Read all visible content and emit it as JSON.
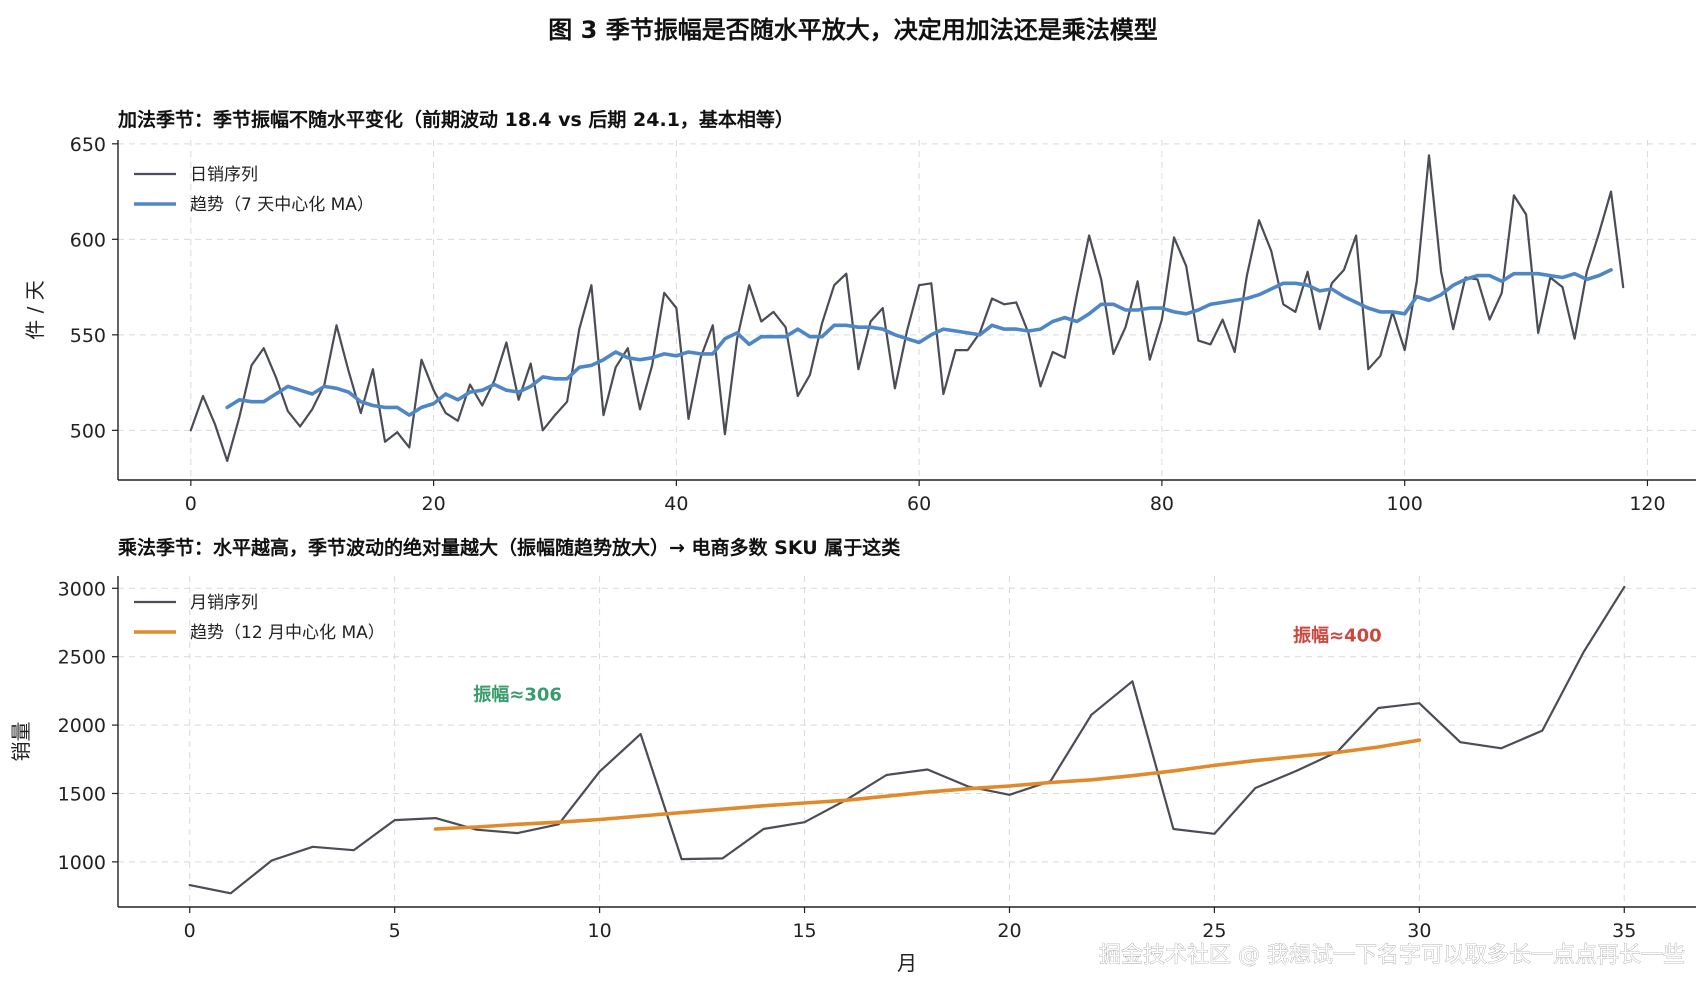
{
  "suptitle": "图 3  季节振幅是否随水平放大，决定用加法还是乘法模型",
  "watermark": "掘金技术社区 @ 我想试一下名字可以取多长一点点再长一些",
  "colors": {
    "daily": "#4a4d55",
    "trend_add": "#4f86c6",
    "trend_mul": "#e08a2c",
    "annot_green": "#3a9b6b",
    "annot_red": "#c9483f"
  },
  "chart_data": [
    {
      "type": "line",
      "title": "加法季节：季节振幅不随水平变化（前期波动 18.4 vs 后期 24.1，基本相等）",
      "xlabel": "",
      "ylabel": "件 / 天",
      "xlim": [
        -6,
        124
      ],
      "ylim": [
        474,
        652
      ],
      "xticks": [
        0,
        20,
        40,
        60,
        80,
        100,
        120
      ],
      "yticks": [
        500,
        550,
        600,
        650
      ],
      "grid": true,
      "legend_position": "top-left",
      "series": [
        {
          "name": "日销序列",
          "x_start": 0,
          "values": [
            500,
            518,
            503,
            484,
            507,
            534,
            543,
            528,
            510,
            502,
            511,
            524,
            555,
            531,
            509,
            532,
            494,
            499,
            491,
            537,
            521,
            509,
            505,
            524,
            513,
            526,
            546,
            516,
            535,
            500,
            508,
            515,
            553,
            576,
            508,
            533,
            543,
            511,
            534,
            572,
            564,
            506,
            538,
            555,
            498,
            548,
            576,
            557,
            562,
            554,
            518,
            529,
            556,
            576,
            582,
            532,
            557,
            564,
            522,
            552,
            576,
            577,
            519,
            542,
            542,
            551,
            569,
            566,
            567,
            551,
            523,
            541,
            538,
            571,
            602,
            579,
            540,
            554,
            578,
            537,
            558,
            601,
            586,
            547,
            545,
            558,
            541,
            581,
            610,
            594,
            566,
            562,
            583,
            553,
            577,
            584,
            602,
            532,
            539,
            562,
            542,
            578,
            644,
            583,
            553,
            580,
            579,
            558,
            572,
            623,
            613,
            551,
            580,
            575,
            548,
            583,
            603,
            625,
            575
          ],
          "color": "#4a4d55"
        },
        {
          "name": "趋势（7 天中心化 MA）",
          "x_start": 3,
          "values": [
            512,
            516,
            515,
            515,
            519,
            523,
            521,
            519,
            523,
            522,
            520,
            515,
            513,
            512,
            512,
            508,
            512,
            514,
            519,
            516,
            520,
            521,
            524,
            521,
            520,
            523,
            528,
            527,
            527,
            533,
            534,
            537,
            541,
            538,
            537,
            538,
            540,
            539,
            541,
            540,
            540,
            548,
            551,
            545,
            549,
            549,
            549,
            553,
            549,
            549,
            555,
            555,
            554,
            554,
            553,
            550,
            548,
            546,
            550,
            553,
            552,
            551,
            550,
            555,
            553,
            553,
            552,
            553,
            557,
            559,
            557,
            561,
            566,
            566,
            563,
            563,
            564,
            564,
            562,
            561,
            563,
            566,
            567,
            568,
            569,
            571,
            574,
            577,
            577,
            576,
            573,
            574,
            570,
            567,
            564,
            562,
            562,
            561,
            570,
            568,
            571,
            576,
            579,
            581,
            581,
            578,
            582,
            582,
            582,
            581,
            580,
            582,
            579,
            581,
            584
          ],
          "color": "#4f86c6"
        }
      ]
    },
    {
      "type": "line",
      "title": "乘法季节：水平越高，季节波动的绝对量越大（振幅随趋势放大）→ 电商多数 SKU 属于这类",
      "xlabel": "月",
      "ylabel": "销量",
      "xlim": [
        -1.75,
        36.75
      ],
      "ylim": [
        670,
        3090
      ],
      "xticks": [
        0,
        5,
        10,
        15,
        20,
        25,
        30,
        35
      ],
      "yticks": [
        1000,
        1500,
        2000,
        2500,
        3000
      ],
      "grid": true,
      "legend_position": "top-left",
      "series": [
        {
          "name": "月销序列",
          "x_start": 0,
          "values": [
            830,
            770,
            1010,
            1110,
            1085,
            1305,
            1320,
            1235,
            1210,
            1275,
            1660,
            1935,
            1020,
            1025,
            1240,
            1290,
            1450,
            1635,
            1675,
            1550,
            1490,
            1590,
            2075,
            2320,
            1240,
            1205,
            1540,
            1665,
            1805,
            2125,
            2160,
            1875,
            1830,
            1960,
            2530,
            3010
          ],
          "color": "#4a4d55"
        },
        {
          "name": "趋势（12 月中心化 MA）",
          "x_start": 6,
          "values": [
            1240,
            1255,
            1275,
            1290,
            1310,
            1335,
            1360,
            1385,
            1410,
            1430,
            1450,
            1480,
            1510,
            1535,
            1555,
            1580,
            1600,
            1630,
            1665,
            1705,
            1740,
            1770,
            1800,
            1840,
            1890
          ],
          "color": "#e08a2c"
        }
      ],
      "annotations": [
        {
          "text": "振幅≈306",
          "x": 8,
          "y": 2180,
          "color": "#3a9b6b"
        },
        {
          "text": "振幅≈400",
          "x": 28,
          "y": 2610,
          "color": "#c9483f"
        }
      ]
    }
  ]
}
